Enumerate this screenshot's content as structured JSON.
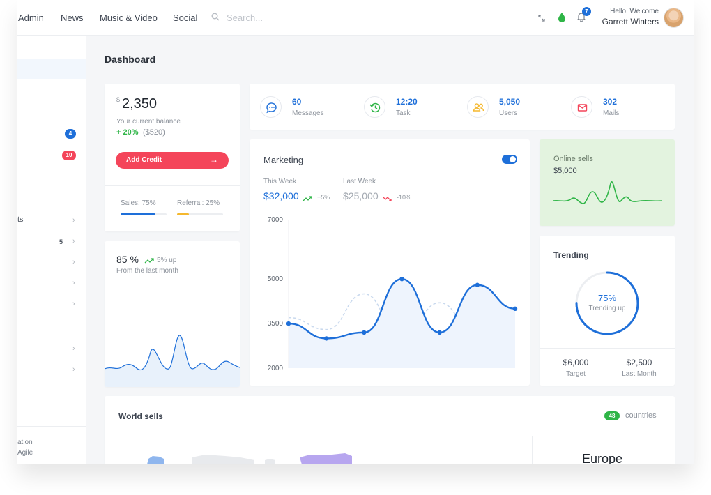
{
  "nav": {
    "items": [
      "Admin",
      "News",
      "Music & Video",
      "Social"
    ],
    "search_placeholder": "Search..."
  },
  "header": {
    "notification_count": "7",
    "greeting": "Hello, Welcome",
    "user_name": "Garrett Winters"
  },
  "sidebar": {
    "badges": [
      "4",
      "10"
    ],
    "text_items": [
      "ts",
      "5"
    ],
    "footer_lines": [
      "ation",
      "Agile"
    ]
  },
  "page": {
    "title": "Dashboard"
  },
  "balance": {
    "currency": "$",
    "amount": "2,350",
    "label": "Your current balance",
    "change": "+ 20%",
    "change_amount": "($520)",
    "button_label": "Add Credit",
    "sales_label": "Sales: 75%",
    "referral_label": "Referral: 25%",
    "sales_progress": 0.75,
    "referral_progress": 0.25
  },
  "stats": [
    {
      "value": "60",
      "label": "Messages",
      "icon": "chat-icon",
      "color": "#1e6fd9"
    },
    {
      "value": "12:20",
      "label": "Task",
      "icon": "history-icon",
      "color": "#2fb547"
    },
    {
      "value": "5,050",
      "label": "Users",
      "icon": "users-icon",
      "color": "#f5b82e"
    },
    {
      "value": "302",
      "label": "Mails",
      "icon": "mail-icon",
      "color": "#f4455a"
    }
  ],
  "growth": {
    "percent": "85 %",
    "delta": "5% up",
    "label": "From the last month"
  },
  "marketing": {
    "title": "Marketing",
    "this_week_label": "This Week",
    "this_week_value": "$32,000",
    "this_week_change": "+5%",
    "last_week_label": "Last Week",
    "last_week_value": "$25,000",
    "last_week_change": "-10%"
  },
  "online": {
    "title": "Online sells",
    "value": "$5,000"
  },
  "trending": {
    "title": "Trending",
    "percent": "75%",
    "label": "Trending up",
    "progress": 0.75,
    "target_value": "$6,000",
    "target_label": "Target",
    "last_value": "$2,500",
    "last_label": "Last Month"
  },
  "world": {
    "title": "World sells",
    "count": "48",
    "count_label": "countries",
    "region": "Europe"
  },
  "colors": {
    "primary": "#1e6fd9",
    "danger": "#f4455a",
    "success": "#2fb547",
    "warning": "#f5b82e"
  },
  "chart_data": {
    "type": "line",
    "title": "",
    "xlabel": "",
    "ylabel": "",
    "ylim": [
      2000,
      7000
    ],
    "yticks": [
      "7000",
      "5000",
      "3500",
      "2000"
    ],
    "x": [
      0,
      1,
      2,
      3,
      4,
      5,
      6
    ],
    "series": [
      {
        "values": [
          3500,
          3000,
          3200,
          5000,
          3200,
          4800,
          4000
        ],
        "style": "solid",
        "color": "#1e6fd9"
      },
      {
        "values": [
          3700,
          3300,
          4500,
          3000,
          4200,
          3000,
          3500
        ],
        "style": "dashed",
        "color": "#c9d9ee"
      }
    ]
  }
}
